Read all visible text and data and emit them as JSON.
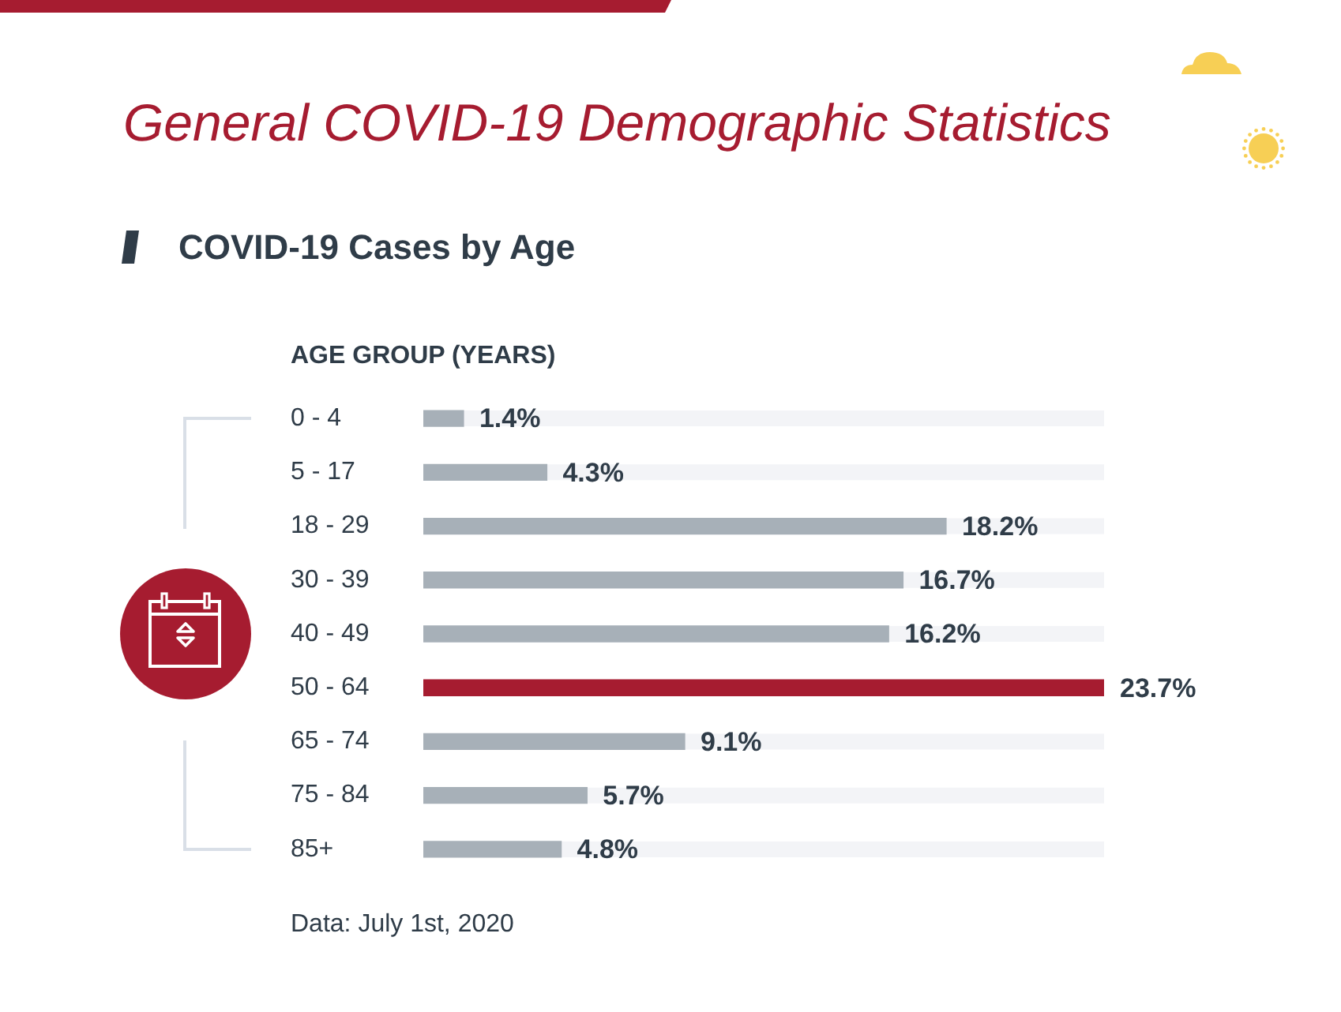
{
  "chart_data": {
    "type": "bar",
    "orientation": "horizontal",
    "title": "General COVID-19 Demographic Statistics",
    "subtitle": "COVID-19 Cases by Age",
    "ylabel": "AGE GROUP (YEARS)",
    "categories": [
      "0 - 4",
      "5 - 17",
      "18 - 29",
      "30 - 39",
      "40 - 49",
      "50 - 64",
      "65 - 74",
      "75 - 84",
      "85+"
    ],
    "values": [
      1.4,
      4.3,
      18.2,
      16.7,
      16.2,
      23.7,
      9.1,
      5.7,
      4.8
    ],
    "colors": [
      "#a7b0b8",
      "#a7b0b8",
      "#a7b0b8",
      "#a7b0b8",
      "#a7b0b8",
      "#a61c30",
      "#a7b0b8",
      "#a7b0b8",
      "#a7b0b8"
    ],
    "value_labels": [
      "1.4%",
      "4.3%",
      "18.2%",
      "16.7%",
      "16.2%",
      "23.7%",
      "9.1%",
      "5.7%",
      "4.8%"
    ],
    "xlim": [
      0,
      23.7
    ],
    "tick_labels": "y",
    "annotations": [
      "Data: July 1st, 2020"
    ]
  }
}
